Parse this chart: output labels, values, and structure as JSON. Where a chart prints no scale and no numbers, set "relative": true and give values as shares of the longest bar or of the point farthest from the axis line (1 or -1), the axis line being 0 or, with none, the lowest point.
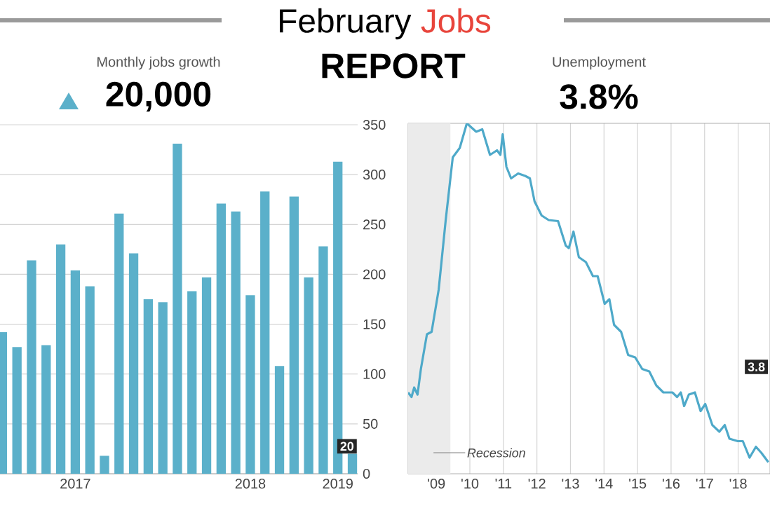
{
  "chart_data": [
    {
      "type": "bar",
      "title": "Monthly jobs growth",
      "subtitle": "20,000",
      "annotations": [
        "February",
        "Jobs",
        "REPORT"
      ],
      "categories": [
        null,
        null,
        null,
        null,
        null,
        "2017",
        null,
        null,
        null,
        null,
        null,
        null,
        null,
        null,
        null,
        null,
        null,
        "2018",
        null,
        null,
        null,
        null,
        null,
        "2019",
        null
      ],
      "values": [
        142,
        127,
        214,
        129,
        230,
        204,
        188,
        18,
        261,
        221,
        175,
        172,
        331,
        183,
        197,
        271,
        263,
        179,
        283,
        108,
        278,
        197,
        228,
        313,
        20
      ],
      "value_labels": [
        null,
        null,
        null,
        null,
        null,
        null,
        null,
        null,
        null,
        null,
        null,
        null,
        null,
        null,
        null,
        null,
        null,
        null,
        null,
        null,
        null,
        null,
        null,
        null,
        "20"
      ],
      "color": "#5bb0ca",
      "ylim": [
        0,
        350
      ],
      "yticks": [
        0,
        50,
        100,
        150,
        200,
        250,
        300,
        350
      ],
      "grid": "y"
    },
    {
      "type": "line",
      "title": "Unemployment",
      "subtitle": "3.8%",
      "relative": true,
      "annotations": [
        "3.8"
      ],
      "xlim": [
        2008.16,
        2018.95
      ],
      "xticks": [
        {
          "value": 2009,
          "label": "'09"
        },
        {
          "value": 2010,
          "label": "'10"
        },
        {
          "value": 2011,
          "label": "'11"
        },
        {
          "value": 2012,
          "label": "'12"
        },
        {
          "value": 2013,
          "label": "'13"
        },
        {
          "value": 2014,
          "label": "'14"
        },
        {
          "value": 2015,
          "label": "'15"
        },
        {
          "value": 2016,
          "label": "'16"
        },
        {
          "value": 2017,
          "label": "'17"
        },
        {
          "value": 2018,
          "label": "'18"
        }
      ],
      "grid": "x",
      "bands": [
        {
          "axis": "x",
          "from": 2008.16,
          "to": 2009.42,
          "label": "Recession",
          "color": "#ebebeb"
        }
      ],
      "series": [
        {
          "color": "#4ea9c9",
          "x": [
            2008.16,
            2008.26,
            2008.34,
            2008.44,
            2008.54,
            2008.72,
            2008.86,
            2009.07,
            2009.28,
            2009.49,
            2009.7,
            2009.91,
            2010.19,
            2010.37,
            2010.6,
            2010.81,
            2010.91,
            2010.98,
            2011.09,
            2011.23,
            2011.44,
            2011.65,
            2011.79,
            2011.93,
            2012.14,
            2012.35,
            2012.63,
            2012.86,
            2012.95,
            2013.09,
            2013.25,
            2013.46,
            2013.67,
            2013.81,
            2014.02,
            2014.16,
            2014.3,
            2014.51,
            2014.72,
            2014.93,
            2015.14,
            2015.35,
            2015.56,
            2015.77,
            2016.04,
            2016.18,
            2016.29,
            2016.39,
            2016.53,
            2016.71,
            2016.88,
            2017.02,
            2017.23,
            2017.44,
            2017.6,
            2017.74,
            2017.99,
            2018.14,
            2018.34,
            2018.53,
            2018.69,
            2018.9
          ],
          "values": [
            0.232,
            0.219,
            0.246,
            0.226,
            0.299,
            0.398,
            0.405,
            0.525,
            0.724,
            0.903,
            0.93,
            1.0,
            0.976,
            0.983,
            0.91,
            0.923,
            0.91,
            0.969,
            0.876,
            0.843,
            0.857,
            0.85,
            0.843,
            0.777,
            0.737,
            0.724,
            0.721,
            0.651,
            0.644,
            0.691,
            0.618,
            0.604,
            0.564,
            0.564,
            0.485,
            0.498,
            0.425,
            0.405,
            0.339,
            0.332,
            0.299,
            0.292,
            0.252,
            0.232,
            0.232,
            0.219,
            0.232,
            0.193,
            0.226,
            0.232,
            0.179,
            0.199,
            0.139,
            0.12,
            0.139,
            0.1,
            0.093,
            0.093,
            0.046,
            0.077,
            0.06,
            0.033
          ]
        }
      ]
    }
  ]
}
